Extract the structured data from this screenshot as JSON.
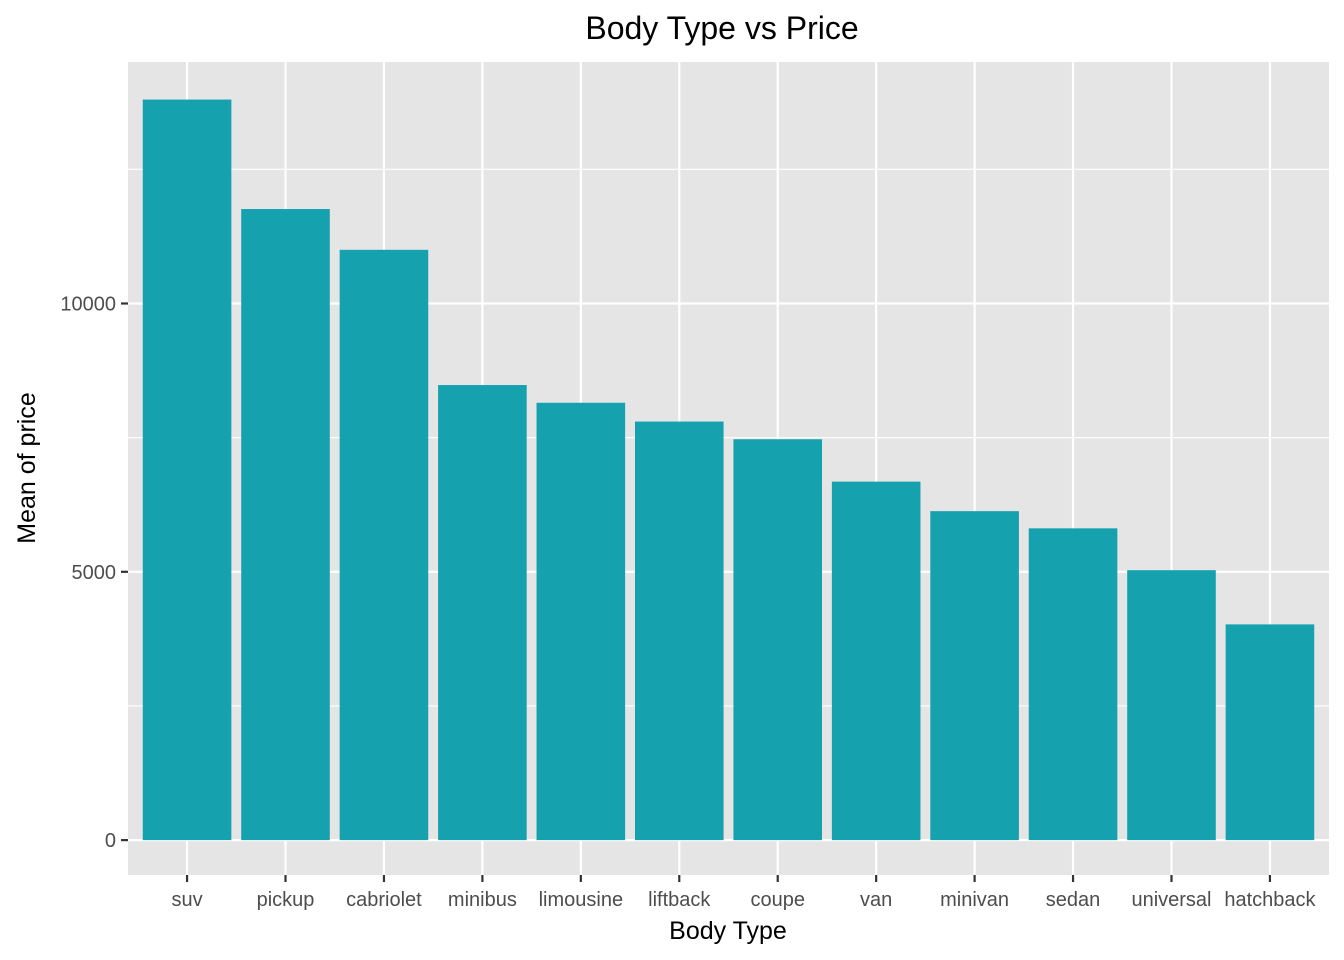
{
  "chart_data": {
    "type": "bar",
    "title": "Body Type vs Price",
    "xlabel": "Body Type",
    "ylabel": "Mean of price",
    "categories": [
      "suv",
      "pickup",
      "cabriolet",
      "minibus",
      "limousine",
      "liftback",
      "coupe",
      "van",
      "minivan",
      "sedan",
      "universal",
      "hatchback"
    ],
    "values": [
      13800,
      11760,
      11000,
      8480,
      8150,
      7800,
      7470,
      6680,
      6130,
      5810,
      5030,
      4020
    ],
    "ylim": [
      -650,
      14500
    ],
    "yticks": [
      0,
      5000,
      10000
    ],
    "ytick_labels": [
      "0",
      "5000",
      "10000"
    ],
    "grid": true,
    "bar_color": "#16a1ae",
    "panel_background": "#e5e5e5",
    "grid_color": "#ffffff"
  }
}
